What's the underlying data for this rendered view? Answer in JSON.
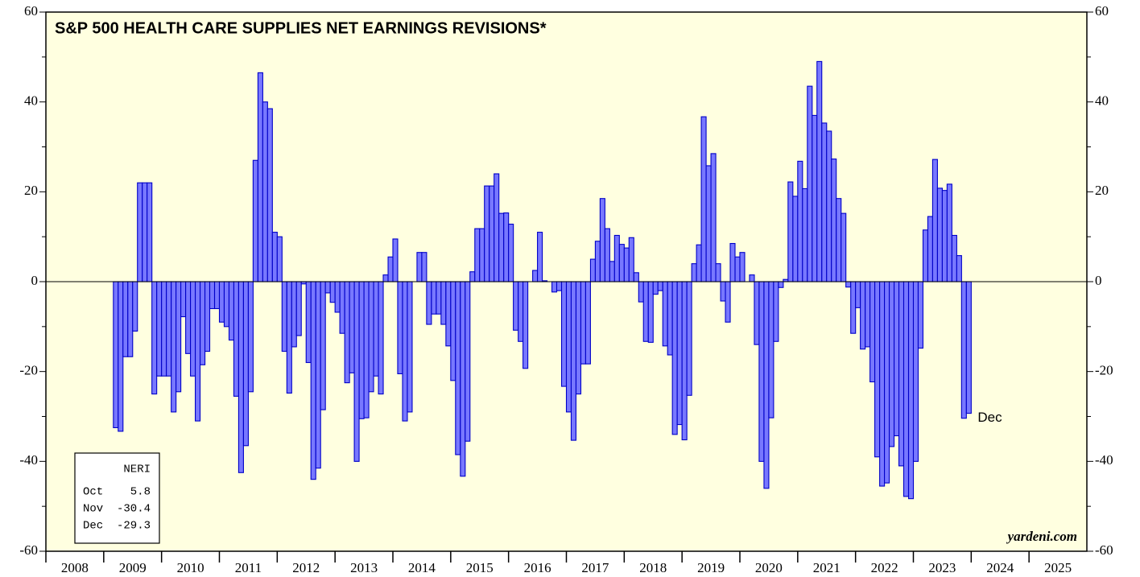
{
  "chart_data": {
    "type": "bar",
    "title": "S&P 500 HEALTH CARE SUPPLIES NET EARNINGS REVISIONS*",
    "source": "yardeni.com",
    "annotation": "Dec",
    "legend_box": {
      "title": "NERI",
      "rows": [
        [
          "Oct",
          "5.8"
        ],
        [
          "Nov",
          "-30.4"
        ],
        [
          "Dec",
          "-29.3"
        ]
      ]
    },
    "color": "#7878ff",
    "x": [
      2009.167,
      2009.25,
      2009.333,
      2009.417,
      2009.5,
      2009.583,
      2009.667,
      2009.75,
      2009.833,
      2009.917,
      2010,
      2010.083,
      2010.167,
      2010.25,
      2010.333,
      2010.417,
      2010.5,
      2010.583,
      2010.667,
      2010.75,
      2010.833,
      2010.917,
      2011,
      2011.083,
      2011.167,
      2011.25,
      2011.333,
      2011.417,
      2011.5,
      2011.583,
      2011.667,
      2011.75,
      2011.833,
      2011.917,
      2012,
      2012.083,
      2012.167,
      2012.25,
      2012.333,
      2012.417,
      2012.5,
      2012.583,
      2012.667,
      2012.75,
      2012.833,
      2012.917,
      2013,
      2013.083,
      2013.167,
      2013.25,
      2013.333,
      2013.417,
      2013.5,
      2013.583,
      2013.667,
      2013.75,
      2013.833,
      2013.917,
      2014,
      2014.083,
      2014.167,
      2014.25,
      2014.333,
      2014.417,
      2014.5,
      2014.583,
      2014.667,
      2014.75,
      2014.833,
      2014.917,
      2015,
      2015.083,
      2015.167,
      2015.25,
      2015.333,
      2015.417,
      2015.5,
      2015.583,
      2015.667,
      2015.75,
      2015.833,
      2015.917,
      2016,
      2016.083,
      2016.167,
      2016.25,
      2016.333,
      2016.417,
      2016.5,
      2016.583,
      2016.667,
      2016.75,
      2016.833,
      2016.917,
      2017,
      2017.083,
      2017.167,
      2017.25,
      2017.333,
      2017.417,
      2017.5,
      2017.583,
      2017.667,
      2017.75,
      2017.833,
      2017.917,
      2018,
      2018.083,
      2018.167,
      2018.25,
      2018.333,
      2018.417,
      2018.5,
      2018.583,
      2018.667,
      2018.75,
      2018.833,
      2018.917,
      2019,
      2019.083,
      2019.167,
      2019.25,
      2019.333,
      2019.417,
      2019.5,
      2019.583,
      2019.667,
      2019.75,
      2019.833,
      2019.917,
      2020,
      2020.083,
      2020.167,
      2020.25,
      2020.333,
      2020.417,
      2020.5,
      2020.583,
      2020.667,
      2020.75,
      2020.833,
      2020.917,
      2021,
      2021.083,
      2021.167,
      2021.25,
      2021.333,
      2021.417,
      2021.5,
      2021.583,
      2021.667,
      2021.75,
      2021.833,
      2021.917,
      2022,
      2022.083,
      2022.167,
      2022.25,
      2022.333,
      2022.417,
      2022.5,
      2022.583,
      2022.667,
      2022.75,
      2022.833,
      2022.917,
      2023,
      2023.083,
      2023.167,
      2023.25,
      2023.333,
      2023.417,
      2023.5,
      2023.583,
      2023.667,
      2023.75,
      2023.833,
      2023.917
    ],
    "values": [
      -32.5,
      -33.3,
      -16.7,
      -16.7,
      -11,
      22,
      22,
      22,
      -25,
      -21,
      -21,
      -21,
      -29,
      -24.5,
      -7.8,
      -16,
      -21,
      -31,
      -18.5,
      -15.5,
      -6,
      -6,
      -9,
      -10,
      -13,
      -25.5,
      -42.5,
      -36.5,
      -24.5,
      27,
      46.5,
      40,
      38.5,
      11,
      10,
      -15.5,
      -24.8,
      -14.5,
      -12,
      -0.5,
      -18,
      -44,
      -41.5,
      -28.5,
      -2.5,
      -4.6,
      -6.8,
      -11.5,
      -22.5,
      -20.3,
      -40,
      -30.5,
      -30.3,
      -24.5,
      -21,
      -25,
      1.5,
      5.5,
      9.5,
      -20.5,
      -31,
      -29,
      0,
      6.5,
      6.5,
      -9.5,
      -7.2,
      -7.2,
      -9.5,
      -14.3,
      -22,
      -38.5,
      -43.3,
      -35.5,
      2.2,
      11.8,
      11.8,
      21.3,
      21.3,
      24,
      15.2,
      15.3,
      12.8,
      -10.8,
      -13.3,
      -19.3,
      0,
      2.5,
      11,
      0.2,
      0,
      -2.3,
      -2,
      -23.3,
      -29,
      -35.3,
      -25,
      -18.3,
      -18.3,
      5,
      9,
      18.5,
      11.8,
      4.5,
      10.3,
      8.3,
      7.5,
      9.8,
      2,
      -4.5,
      -13.3,
      -13.5,
      -2.8,
      -2,
      -14.3,
      -16.3,
      -34,
      -31.8,
      -35.2,
      -25.3,
      4,
      8.2,
      36.7,
      25.8,
      28.5,
      4,
      -4.3,
      -9,
      8.5,
      5.5,
      6.5,
      0,
      1.5,
      -14,
      -40,
      -46,
      -30.3,
      -13.3,
      -1.3,
      0.5,
      22.2,
      19,
      26.8,
      20.7,
      43.5,
      37,
      49,
      35.3,
      33.5,
      27.3,
      18.5,
      15.2,
      -1.2,
      -11.5,
      -5.8,
      -15,
      -14.5,
      -22.3,
      -39,
      -45.5,
      -44.8,
      -36.7,
      -34.3,
      -41,
      -47.8,
      -48.3,
      -40,
      -14.8,
      11.5,
      14.5,
      27.2,
      20.8,
      20.3,
      21.7,
      10.3,
      5.8,
      -30.4,
      -29.3
    ],
    "xlim": [
      2008,
      2026
    ],
    "xticks": [
      2008,
      2009,
      2010,
      2011,
      2012,
      2013,
      2014,
      2015,
      2016,
      2017,
      2018,
      2019,
      2020,
      2021,
      2022,
      2023,
      2024,
      2025
    ],
    "ylim": [
      -60,
      60
    ],
    "yticks": [
      -60,
      -40,
      -20,
      0,
      20,
      40,
      60
    ],
    "yminor": [
      -50,
      -30,
      -10,
      10,
      30,
      50
    ]
  }
}
